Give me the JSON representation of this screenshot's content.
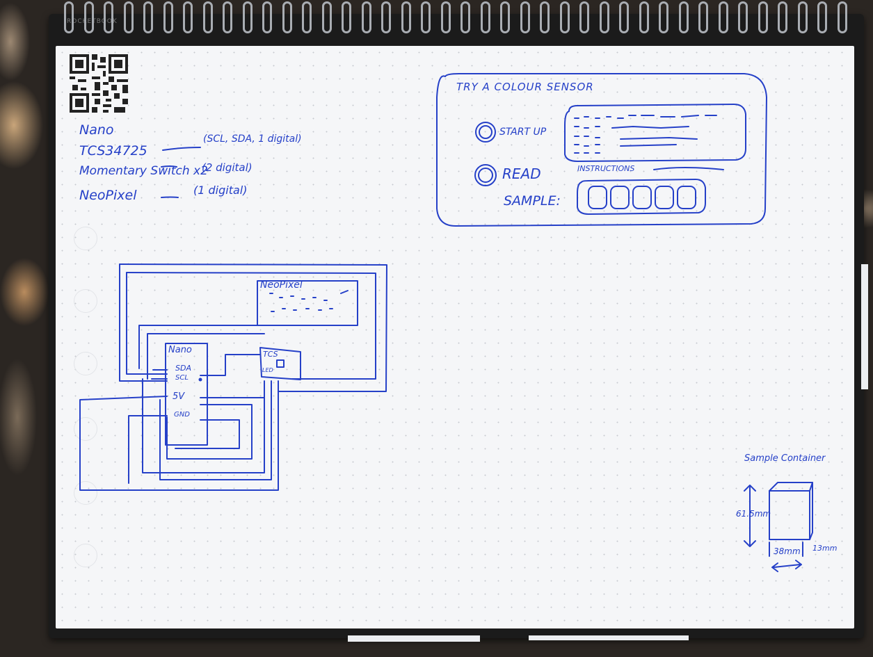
{
  "brand": "ROCKETBOOK",
  "parts_list": [
    {
      "item": "Nano",
      "note": ""
    },
    {
      "item": "TCS34725",
      "note": "(SCL, SDA, 1 digital)"
    },
    {
      "item": "Momentary Switch x2",
      "note": "(2 digital)"
    },
    {
      "item": "NeoPixel",
      "note": "(1 digital)"
    }
  ],
  "wiring": {
    "neopixel_label": "NeoPixel",
    "nano_label": "Nano",
    "tcs_label": "TCS",
    "led_label": "LED",
    "pins": [
      "SDA",
      "SCL",
      "5V",
      "GND"
    ]
  },
  "ui_mockup": {
    "title": "TRY A COLOUR SENSOR",
    "start_up_label": "START UP",
    "read_label": "READ",
    "instructions_label": "INSTRUCTIONS",
    "sample_label": "SAMPLE:"
  },
  "container": {
    "title": "Sample Container",
    "height": "61.5mm",
    "width": "38mm",
    "depth": "13mm"
  },
  "colors": {
    "ink": "#2540c8",
    "paper": "#f5f6f8",
    "cover": "#1b1b1b"
  }
}
